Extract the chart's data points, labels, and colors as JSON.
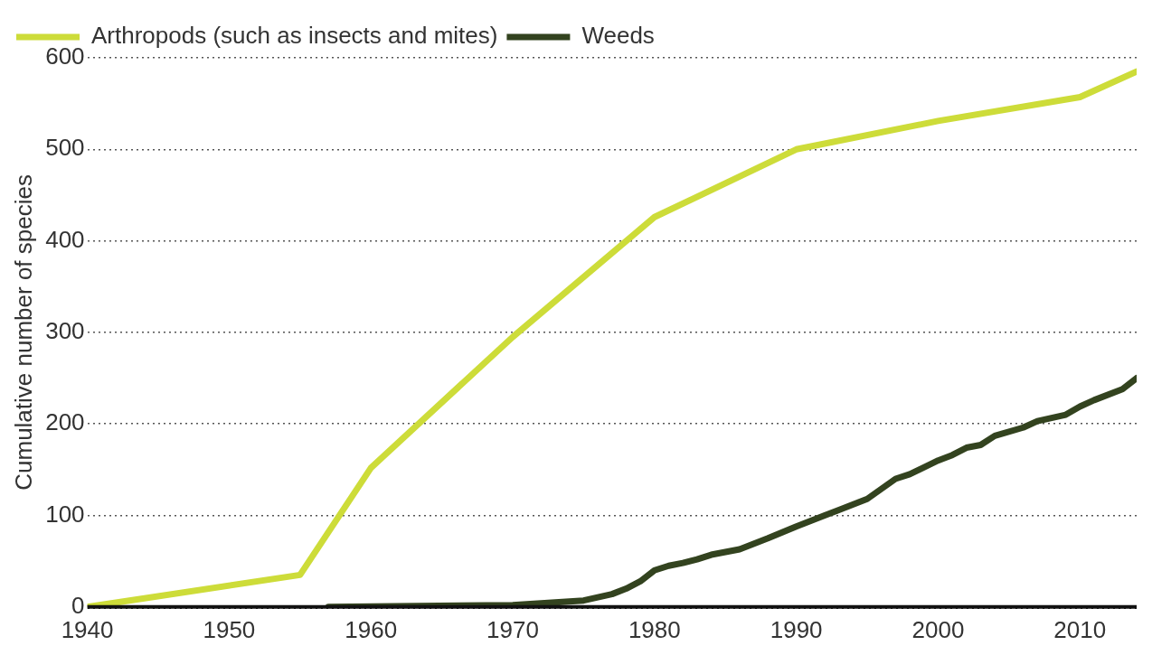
{
  "chart_data": {
    "type": "line",
    "ylabel": "Cumulative number of species",
    "xlim": [
      1940,
      2014
    ],
    "xticks": [
      1940,
      1950,
      1960,
      1970,
      1980,
      1990,
      2000,
      2010
    ],
    "ylim": [
      0,
      600
    ],
    "yticks": [
      0,
      100,
      200,
      300,
      400,
      500,
      600
    ],
    "grid": "y",
    "legend": "top left",
    "marker": "none",
    "line_style": "solid",
    "series": [
      {
        "name": "Arthropods (such as insects and mites)",
        "color": "#cddc39",
        "x": [
          1940,
          1955,
          1960,
          1970,
          1980,
          1990,
          2000,
          2010,
          2014
        ],
        "values": [
          0,
          35,
          152,
          295,
          426,
          500,
          531,
          557,
          585
        ]
      },
      {
        "name": "Weeds",
        "color": "#33431f",
        "x": [
          1957,
          1970,
          1973,
          1975,
          1977,
          1978,
          1979,
          1980,
          1981,
          1982,
          1983,
          1984,
          1986,
          1988,
          1990,
          1992,
          1993,
          1995,
          1997,
          1998,
          2000,
          2001,
          2002,
          2003,
          2004,
          2006,
          2007,
          2009,
          2010,
          2011,
          2013,
          2014
        ],
        "values": [
          0,
          2,
          5,
          7,
          14,
          20,
          28,
          40,
          45,
          48,
          52,
          57,
          63,
          75,
          88,
          100,
          106,
          118,
          140,
          145,
          160,
          166,
          174,
          177,
          187,
          196,
          203,
          210,
          219,
          226,
          238,
          250
        ]
      }
    ]
  }
}
